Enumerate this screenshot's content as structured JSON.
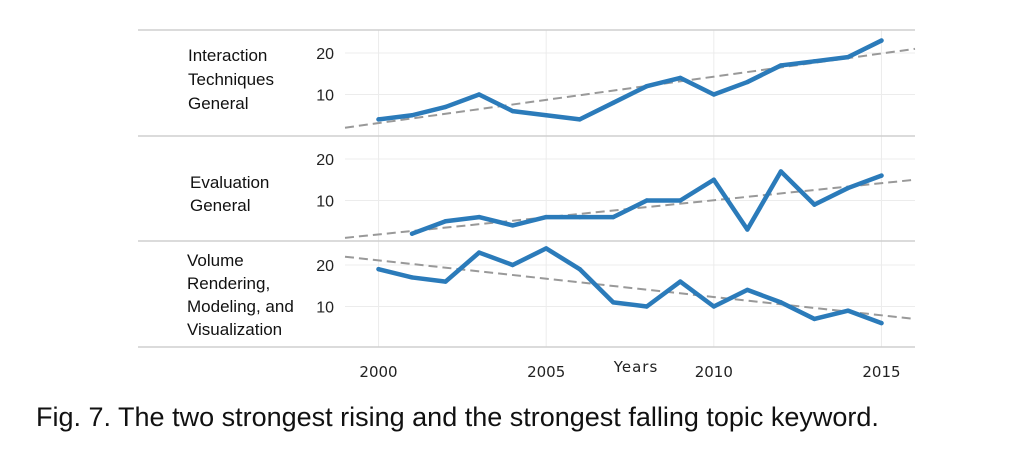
{
  "caption": "Fig. 7. The two strongest rising and the strongest falling topic keyword.",
  "chart_data": {
    "type": "line",
    "xlabel": "Years",
    "x_ticks": [
      2000,
      2005,
      2010,
      2015
    ],
    "xlim": [
      1999,
      2016
    ],
    "y_ticks": [
      10,
      20
    ],
    "ylim": [
      0,
      25
    ],
    "grid": true,
    "line_color": "#2b7bba",
    "trend_color": "#999999",
    "panels": [
      {
        "label_lines": [
          "Interaction",
          "Techniques",
          "General"
        ],
        "series": {
          "x": [
            2000,
            2001,
            2002,
            2003,
            2004,
            2005,
            2006,
            2007,
            2008,
            2009,
            2010,
            2011,
            2012,
            2013,
            2014,
            2015
          ],
          "values": [
            4,
            5,
            7,
            10,
            6,
            5,
            4,
            8,
            12,
            14,
            10,
            13,
            17,
            18,
            19,
            23
          ]
        },
        "trend": {
          "x": [
            1999,
            2016
          ],
          "values": [
            2,
            21
          ]
        }
      },
      {
        "label_lines": [
          "Evaluation",
          "General"
        ],
        "series": {
          "x": [
            2001,
            2002,
            2003,
            2004,
            2005,
            2006,
            2007,
            2008,
            2009,
            2010,
            2011,
            2012,
            2013,
            2014,
            2015
          ],
          "values": [
            2,
            5,
            6,
            4,
            6,
            6,
            6,
            10,
            10,
            15,
            3,
            17,
            9,
            13,
            16
          ]
        },
        "trend": {
          "x": [
            1999,
            2016
          ],
          "values": [
            1,
            15
          ]
        }
      },
      {
        "label_lines": [
          "Volume",
          "Rendering,",
          "Modeling, and",
          "Visualization"
        ],
        "series": {
          "x": [
            2000,
            2001,
            2002,
            2003,
            2004,
            2005,
            2006,
            2007,
            2008,
            2009,
            2010,
            2011,
            2012,
            2013,
            2014,
            2015
          ],
          "values": [
            19,
            17,
            16,
            23,
            20,
            24,
            19,
            11,
            10,
            16,
            10,
            14,
            11,
            7,
            9,
            6
          ]
        },
        "trend": {
          "x": [
            1999,
            2016
          ],
          "values": [
            22,
            7
          ]
        }
      }
    ]
  }
}
